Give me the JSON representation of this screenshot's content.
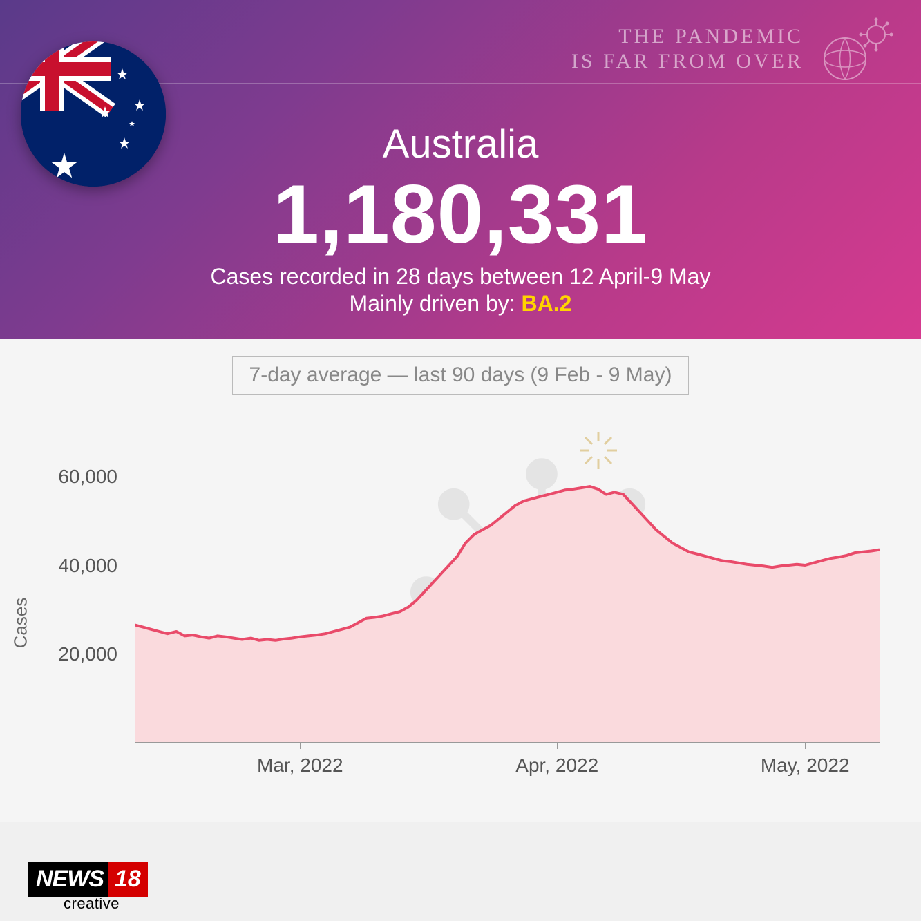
{
  "header": {
    "tagline_line1": "THE PANDEMIC",
    "tagline_line2": "IS FAR FROM OVER",
    "country": "Australia",
    "case_number": "1,180,331",
    "subtitle": "Cases recorded in 28 days between 12 April-9 May",
    "driven_by_prefix": "Mainly driven by: ",
    "variant": "BA.2",
    "flag_colors": {
      "background": "#012169",
      "union_red": "#C8102E",
      "union_white": "#FFFFFF",
      "star": "#FFFFFF"
    }
  },
  "chart": {
    "type": "area",
    "title": "7-day average — last 90 days (9 Feb - 9 May)",
    "ylabel": "Cases",
    "ylim": [
      0,
      70000
    ],
    "yticks": [
      20000,
      40000,
      60000
    ],
    "ytick_labels": [
      "20,000",
      "40,000",
      "60,000"
    ],
    "xticks": [
      0.222,
      0.567,
      0.9
    ],
    "xtick_labels": [
      "Mar, 2022",
      "Apr, 2022",
      "May, 2022"
    ],
    "line_color": "#e94b6a",
    "fill_color": "#fadadd",
    "line_width": 4,
    "background_color": "#f5f5f5",
    "data_points": [
      [
        0.0,
        26500
      ],
      [
        0.011,
        26000
      ],
      [
        0.022,
        25500
      ],
      [
        0.033,
        25000
      ],
      [
        0.044,
        24500
      ],
      [
        0.056,
        25000
      ],
      [
        0.067,
        24000
      ],
      [
        0.078,
        24200
      ],
      [
        0.089,
        23800
      ],
      [
        0.1,
        23500
      ],
      [
        0.111,
        24000
      ],
      [
        0.122,
        23800
      ],
      [
        0.133,
        23500
      ],
      [
        0.144,
        23200
      ],
      [
        0.156,
        23500
      ],
      [
        0.167,
        23000
      ],
      [
        0.178,
        23200
      ],
      [
        0.189,
        23000
      ],
      [
        0.2,
        23300
      ],
      [
        0.211,
        23500
      ],
      [
        0.222,
        23800
      ],
      [
        0.233,
        24000
      ],
      [
        0.244,
        24200
      ],
      [
        0.256,
        24500
      ],
      [
        0.267,
        25000
      ],
      [
        0.278,
        25500
      ],
      [
        0.289,
        26000
      ],
      [
        0.3,
        27000
      ],
      [
        0.311,
        28000
      ],
      [
        0.322,
        28200
      ],
      [
        0.333,
        28500
      ],
      [
        0.344,
        29000
      ],
      [
        0.356,
        29500
      ],
      [
        0.367,
        30500
      ],
      [
        0.378,
        32000
      ],
      [
        0.389,
        34000
      ],
      [
        0.4,
        36000
      ],
      [
        0.411,
        38000
      ],
      [
        0.422,
        40000
      ],
      [
        0.433,
        42000
      ],
      [
        0.444,
        45000
      ],
      [
        0.456,
        47000
      ],
      [
        0.467,
        48000
      ],
      [
        0.478,
        49000
      ],
      [
        0.489,
        50500
      ],
      [
        0.5,
        52000
      ],
      [
        0.511,
        53500
      ],
      [
        0.522,
        54500
      ],
      [
        0.533,
        55000
      ],
      [
        0.544,
        55500
      ],
      [
        0.556,
        56000
      ],
      [
        0.567,
        56500
      ],
      [
        0.578,
        57000
      ],
      [
        0.589,
        57200
      ],
      [
        0.6,
        57500
      ],
      [
        0.611,
        57800
      ],
      [
        0.622,
        57200
      ],
      [
        0.633,
        56000
      ],
      [
        0.644,
        56500
      ],
      [
        0.656,
        56000
      ],
      [
        0.667,
        54000
      ],
      [
        0.678,
        52000
      ],
      [
        0.689,
        50000
      ],
      [
        0.7,
        48000
      ],
      [
        0.711,
        46500
      ],
      [
        0.722,
        45000
      ],
      [
        0.733,
        44000
      ],
      [
        0.744,
        43000
      ],
      [
        0.756,
        42500
      ],
      [
        0.767,
        42000
      ],
      [
        0.778,
        41500
      ],
      [
        0.789,
        41000
      ],
      [
        0.8,
        40800
      ],
      [
        0.811,
        40500
      ],
      [
        0.822,
        40200
      ],
      [
        0.833,
        40000
      ],
      [
        0.844,
        39800
      ],
      [
        0.856,
        39500
      ],
      [
        0.867,
        39800
      ],
      [
        0.878,
        40000
      ],
      [
        0.889,
        40200
      ],
      [
        0.9,
        40000
      ],
      [
        0.911,
        40500
      ],
      [
        0.922,
        41000
      ],
      [
        0.933,
        41500
      ],
      [
        0.944,
        41800
      ],
      [
        0.956,
        42200
      ],
      [
        0.967,
        42800
      ],
      [
        0.978,
        43000
      ],
      [
        0.989,
        43200
      ],
      [
        1.0,
        43500
      ]
    ]
  },
  "logo": {
    "brand_a": "NEWS",
    "brand_b": "18",
    "sub": "creative"
  }
}
